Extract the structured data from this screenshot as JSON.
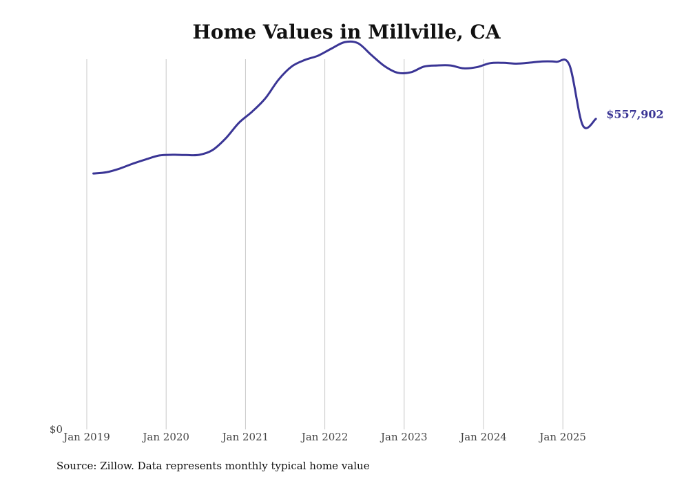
{
  "chart_data": {
    "type": "line",
    "title": "Home Values in Millville, CA",
    "xlabel": "",
    "ylabel": "",
    "x_tick_labels": [
      "Jan 2019",
      "Jan 2020",
      "Jan 2021",
      "Jan 2022",
      "Jan 2023",
      "Jan 2024",
      "Jan 2025"
    ],
    "y_tick_labels": [
      "$0"
    ],
    "ylim": [
      0,
      665000
    ],
    "grid": "vertical",
    "end_label": "$557,902",
    "line_color": "#3a3595",
    "series": [
      {
        "x": [
          "2019-02",
          "2019-04",
          "2019-06",
          "2019-08",
          "2019-10",
          "2019-12",
          "2020-02",
          "2020-04",
          "2020-06",
          "2020-08",
          "2020-10",
          "2020-12",
          "2021-02",
          "2021-04",
          "2021-06",
          "2021-08",
          "2021-10",
          "2021-12",
          "2022-02",
          "2022-04",
          "2022-06",
          "2022-08",
          "2022-10",
          "2022-12",
          "2023-02",
          "2023-04",
          "2023-06",
          "2023-08",
          "2023-10",
          "2023-12",
          "2024-02",
          "2024-04",
          "2024-06",
          "2024-08",
          "2024-10",
          "2024-12",
          "2025-02",
          "2025-04",
          "2025-06"
        ],
        "values": [
          459700,
          462000,
          468600,
          477500,
          485300,
          492100,
          493300,
          492800,
          493200,
          501600,
          522600,
          550600,
          570700,
          594600,
          628200,
          652000,
          663700,
          671400,
          684000,
          695600,
          693800,
          672900,
          652800,
          640700,
          641400,
          651700,
          653700,
          653700,
          648600,
          650700,
          657800,
          658500,
          657000,
          658800,
          661000,
          660300,
          654400,
          546400,
          557902
        ]
      }
    ]
  },
  "source": {
    "text": "Source: Zillow. Data represents monthly typical home value"
  }
}
